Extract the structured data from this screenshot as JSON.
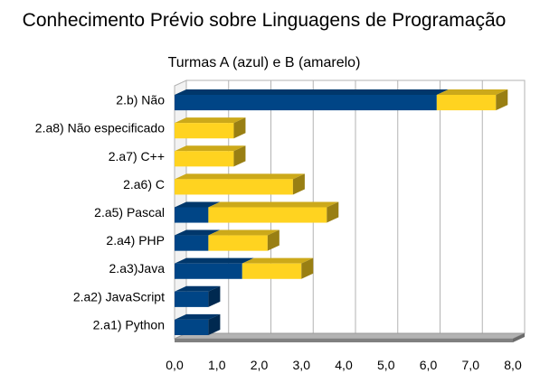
{
  "chart_data": {
    "type": "bar",
    "orientation": "horizontal",
    "stacked": true,
    "three_d": true,
    "title": "Conhecimento Prévio sobre Linguagens de Programação",
    "subtitle": "Turmas A (azul) e B (amarelo)",
    "xlim": [
      0,
      8
    ],
    "x_ticks": [
      "0,0",
      "1,0",
      "2,0",
      "3,0",
      "4,0",
      "5,0",
      "6,0",
      "7,0",
      "8,0"
    ],
    "grid": true,
    "legend": "none",
    "categories": [
      "2.b) Não",
      "2.a8) Não especificado",
      "2.a7) C++",
      "2.a6) C",
      "2.a5) Pascal",
      "2.a4) PHP",
      "2.a3)Java",
      "2.a2) JavaScript",
      "2.a1) Python"
    ],
    "series": [
      {
        "color": "#004586",
        "values": [
          6.2,
          0,
          0,
          0,
          0.8,
          0.8,
          1.6,
          0.8,
          0.8
        ]
      },
      {
        "color": "#ffd320",
        "values": [
          1.4,
          1.4,
          1.4,
          2.8,
          2.8,
          1.4,
          1.4,
          0,
          0
        ]
      }
    ]
  }
}
